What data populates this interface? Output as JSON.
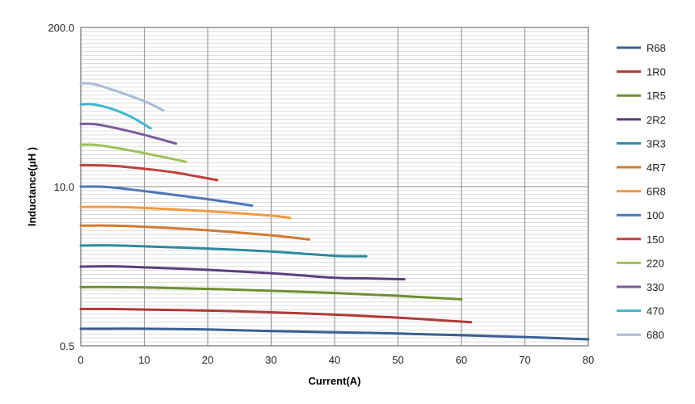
{
  "chart_data": {
    "type": "line",
    "xlabel": "Current(A)",
    "ylabel": "Inductance(μH )",
    "xlim": [
      0,
      80
    ],
    "ylim": [
      0.5,
      200.0
    ],
    "yscale": "log",
    "grid": true,
    "legend_position": "right",
    "x_ticks": [
      "0",
      "10",
      "20",
      "30",
      "40",
      "50",
      "60",
      "70",
      "80"
    ],
    "y_ticks": [
      "0.5",
      "10.0",
      "200.0"
    ],
    "series": [
      {
        "name": "R68",
        "color": "#3a5f92",
        "x": [
          0,
          5,
          10,
          20,
          30,
          40,
          50,
          60,
          70,
          80
        ],
        "y": [
          0.69,
          0.69,
          0.69,
          0.68,
          0.66,
          0.645,
          0.63,
          0.61,
          0.59,
          0.565
        ]
      },
      {
        "name": "1R0",
        "color": "#b03a37",
        "x": [
          0,
          5,
          10,
          20,
          30,
          40,
          50,
          61.5
        ],
        "y": [
          1.0,
          1.0,
          0.99,
          0.97,
          0.94,
          0.9,
          0.85,
          0.78
        ]
      },
      {
        "name": "1R5",
        "color": "#6f8f31",
        "x": [
          0,
          5,
          10,
          20,
          30,
          40,
          50,
          60
        ],
        "y": [
          1.51,
          1.51,
          1.5,
          1.46,
          1.41,
          1.35,
          1.28,
          1.2
        ]
      },
      {
        "name": "2R2",
        "color": "#5b3f7b",
        "x": [
          0,
          5,
          10,
          20,
          30,
          40,
          45,
          51
        ],
        "y": [
          2.22,
          2.23,
          2.19,
          2.09,
          1.96,
          1.8,
          1.78,
          1.75
        ]
      },
      {
        "name": "3R3",
        "color": "#2e8aa0",
        "x": [
          0,
          5,
          10,
          20,
          30,
          40,
          45
        ],
        "y": [
          3.3,
          3.31,
          3.25,
          3.12,
          2.95,
          2.72,
          2.7
        ]
      },
      {
        "name": "4R7",
        "color": "#d07a30",
        "x": [
          0,
          5,
          10,
          20,
          30,
          36
        ],
        "y": [
          4.8,
          4.8,
          4.7,
          4.4,
          4.0,
          3.7
        ]
      },
      {
        "name": "6R8",
        "color": "#f39a40",
        "x": [
          0,
          5,
          10,
          20,
          30,
          33
        ],
        "y": [
          6.82,
          6.82,
          6.7,
          6.3,
          5.8,
          5.55
        ]
      },
      {
        "name": "100",
        "color": "#4a78b8",
        "x": [
          0,
          4,
          10,
          20,
          27
        ],
        "y": [
          10.0,
          9.95,
          9.2,
          7.9,
          7.0
        ]
      },
      {
        "name": "150",
        "color": "#c0413e",
        "x": [
          0,
          5,
          10,
          15,
          21.5
        ],
        "y": [
          15.0,
          14.8,
          14.0,
          13.0,
          11.3
        ]
      },
      {
        "name": "220",
        "color": "#9cc35a",
        "x": [
          0,
          2,
          5,
          10,
          16.5
        ],
        "y": [
          22.0,
          22.0,
          21.0,
          18.8,
          16.0
        ]
      },
      {
        "name": "330",
        "color": "#7b5a9f",
        "x": [
          0,
          2,
          5,
          10,
          15
        ],
        "y": [
          32.5,
          32.5,
          30.5,
          26.5,
          22.5
        ]
      },
      {
        "name": "470",
        "color": "#3fb5cc",
        "x": [
          0,
          2,
          5,
          8,
          11
        ],
        "y": [
          47.0,
          47.0,
          43.0,
          37.0,
          30.0
        ]
      },
      {
        "name": "680",
        "color": "#a8bcd6",
        "x": [
          0,
          2,
          5,
          10,
          13
        ],
        "y": [
          70.0,
          69.0,
          62.0,
          50.0,
          42.0
        ]
      }
    ]
  }
}
